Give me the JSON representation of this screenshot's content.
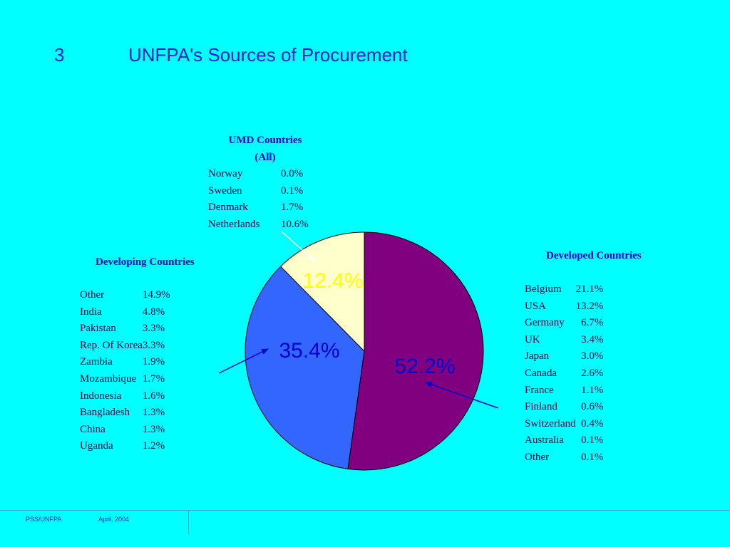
{
  "slide": {
    "number": "3",
    "title": "UNFPA's Sources of Procurement"
  },
  "footer": {
    "org": "PSS/UNFPA",
    "date": "April, 2004"
  },
  "colors": {
    "background": "#00FFFF",
    "developed_slice": "#800080",
    "developing_slice": "#3366FF",
    "umd_slice": "#FFFFCC",
    "label_dark": "#0000CC",
    "label_light": "#FFFF00"
  },
  "chart_data": {
    "type": "pie",
    "slices": [
      {
        "name": "Developed Countries",
        "value": 52.2,
        "label": "52.2%"
      },
      {
        "name": "Developing Countries",
        "value": 35.4,
        "label": "35.4%"
      },
      {
        "name": "UMD Countries",
        "value": 12.4,
        "label": "12.4%"
      }
    ]
  },
  "umd": {
    "title": "UMD Countries",
    "subtitle": "(All)",
    "items": [
      {
        "country": "Norway",
        "share": "0.0%"
      },
      {
        "country": "Sweden",
        "share": "0.1%"
      },
      {
        "country": "Denmark",
        "share": "1.7%"
      },
      {
        "country": "Netherlands",
        "share": "10.6%"
      }
    ]
  },
  "developing": {
    "title": "Developing Countries",
    "items": [
      {
        "country": "Other",
        "share": "14.9%"
      },
      {
        "country": "India",
        "share": "4.8%"
      },
      {
        "country": "Pakistan",
        "share": "3.3%"
      },
      {
        "country": "Rep. Of Korea",
        "share": "3.3%"
      },
      {
        "country": "Zambia",
        "share": "1.9%"
      },
      {
        "country": "Mozambique",
        "share": "1.7%"
      },
      {
        "country": "Indonesia",
        "share": "1.6%"
      },
      {
        "country": "Bangladesh",
        "share": "1.3%"
      },
      {
        "country": "China",
        "share": "1.3%"
      },
      {
        "country": "Uganda",
        "share": "1.2%"
      }
    ]
  },
  "developed": {
    "title": "Developed Countries",
    "items": [
      {
        "country": "Belgium",
        "share": "21.1%"
      },
      {
        "country": "USA",
        "share": "13.2%"
      },
      {
        "country": "Germany",
        "share": "6.7%"
      },
      {
        "country": "UK",
        "share": "3.4%"
      },
      {
        "country": "Japan",
        "share": "3.0%"
      },
      {
        "country": "Canada",
        "share": "2.6%"
      },
      {
        "country": "France",
        "share": "1.1%"
      },
      {
        "country": "Finland",
        "share": "0.6%"
      },
      {
        "country": "Switzerland",
        "share": "0.4%"
      },
      {
        "country": "Australia",
        "share": "0.1%"
      },
      {
        "country": "Other",
        "share": "0.1%"
      }
    ]
  }
}
